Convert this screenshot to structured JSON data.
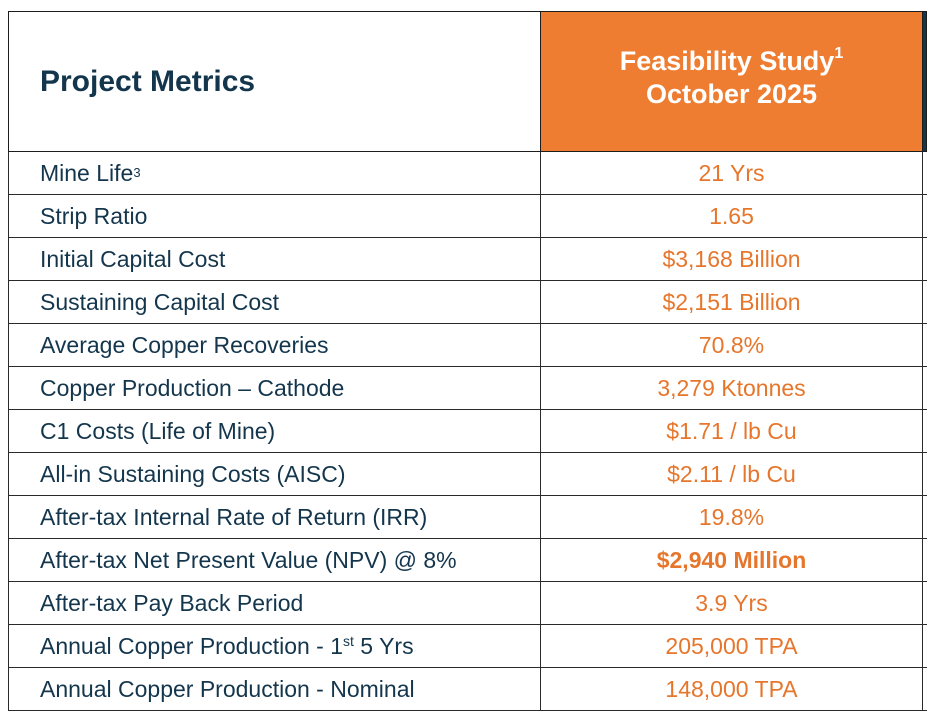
{
  "header": {
    "label": "Project Metrics",
    "study_line1": "Feasibility Study",
    "study_sup": "1",
    "study_line2": "October 2025"
  },
  "rows": [
    {
      "label": "Mine Life",
      "label_sup": "3",
      "value": "21 Yrs"
    },
    {
      "label": "Strip Ratio",
      "value": "1.65"
    },
    {
      "label": "Initial Capital Cost",
      "value": "$3,168 Billion"
    },
    {
      "label": "Sustaining Capital Cost",
      "value": "$2,151 Billion"
    },
    {
      "label": "Average Copper Recoveries",
      "value": "70.8%"
    },
    {
      "label": "Copper Production – Cathode",
      "value": "3,279 Ktonnes"
    },
    {
      "label": "C1 Costs (Life of Mine)",
      "value": "$1.71 / lb Cu"
    },
    {
      "label": "All-in Sustaining Costs (AISC)",
      "value": "$2.11 / lb Cu"
    },
    {
      "label": "After-tax Internal Rate of Return (IRR)",
      "value": "19.8%"
    },
    {
      "label": "After-tax Net Present Value (NPV) @ 8%",
      "value": "$2,940 Million",
      "emphasis": true
    },
    {
      "label": "After-tax Pay Back Period",
      "value": "3.9 Yrs"
    },
    {
      "label_pre": "Annual Copper Production - 1",
      "label_sup": "st",
      "label_post": " 5 Yrs",
      "value": "205,000 TPA"
    },
    {
      "label": "Annual Copper Production - Nominal",
      "value": "148,000 TPA"
    }
  ],
  "colors": {
    "header_bg": "#ee7d31",
    "value_text": "#e6762c",
    "label_text": "#14364d",
    "edge_accent": "#14364d"
  }
}
